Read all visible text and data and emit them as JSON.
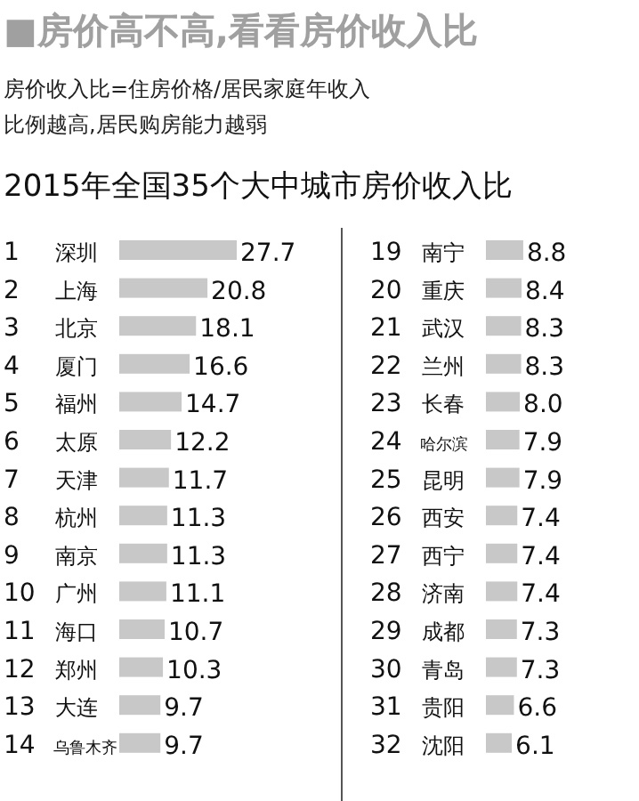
{
  "chart_data": [
    {
      "type": "bar",
      "orientation": "horizontal",
      "title": "■房价高不高,看看房价收入比",
      "annotations": [
        "房价收入比=住房价格/居民家庭年收入",
        "比例越高,居民购房能力越弱"
      ],
      "subtitle": "2015年全国35个大中城市房价收入比",
      "data_labels": true,
      "color": "#c8c8c8",
      "categories": [
        "1 深圳",
        "2 上海",
        "3 北京",
        "4 厦门",
        "5 福州",
        "6 太原",
        "7 天津",
        "8 杭州",
        "9 南京",
        "10 广州",
        "11 海口",
        "12 郑州",
        "13 大连",
        "14 乌鲁木齐"
      ],
      "values": [
        27.7,
        20.8,
        18.1,
        16.6,
        14.7,
        12.2,
        11.7,
        11.3,
        11.3,
        11.1,
        10.7,
        10.3,
        9.7,
        9.7
      ]
    },
    {
      "type": "bar",
      "orientation": "horizontal",
      "color": "#c8c8c8",
      "value_labels": [
        "8.8",
        "8.4",
        "8.3",
        "8.3",
        "8.0",
        "7.9",
        "7.9",
        "7.4",
        "7.4",
        "7.4",
        "7.3",
        "7.3",
        "6.6",
        "6.1"
      ],
      "categories": [
        "19 南宁",
        "20 重庆",
        "21 武汉",
        "22 兰州",
        "23 长春",
        "24 哈尔滨",
        "25 昆明",
        "26 西安",
        "27 西宁",
        "28 济南",
        "29 成都",
        "30 青岛",
        "31 贵阳",
        "32 沈阳"
      ],
      "values": [
        8.8,
        8.4,
        8.3,
        8.3,
        8.0,
        7.9,
        7.9,
        7.4,
        7.4,
        7.4,
        7.3,
        7.3,
        6.6,
        6.1
      ]
    }
  ]
}
